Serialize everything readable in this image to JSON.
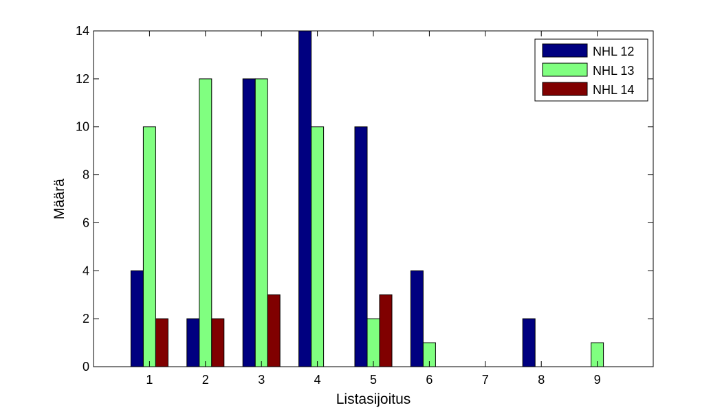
{
  "chart_data": {
    "type": "bar",
    "title": "",
    "xlabel": "Listasijoitus",
    "ylabel": "Määrä",
    "categories": [
      "1",
      "2",
      "3",
      "4",
      "5",
      "6",
      "7",
      "8",
      "9"
    ],
    "series": [
      {
        "name": "NHL 12",
        "color": "#000080",
        "values": [
          4,
          2,
          12,
          14,
          10,
          4,
          0,
          2,
          0
        ]
      },
      {
        "name": "NHL 13",
        "color": "#80ff80",
        "values": [
          10,
          12,
          12,
          10,
          2,
          1,
          0,
          0,
          1
        ]
      },
      {
        "name": "NHL 14",
        "color": "#800000",
        "values": [
          2,
          2,
          3,
          0,
          3,
          0,
          0,
          0,
          0
        ]
      }
    ],
    "ylim": [
      0,
      14
    ],
    "xlim": [
      0,
      10
    ],
    "yticks": [
      "0",
      "2",
      "4",
      "6",
      "8",
      "10",
      "12",
      "14"
    ],
    "grid": false,
    "legend_position": "top-right"
  }
}
